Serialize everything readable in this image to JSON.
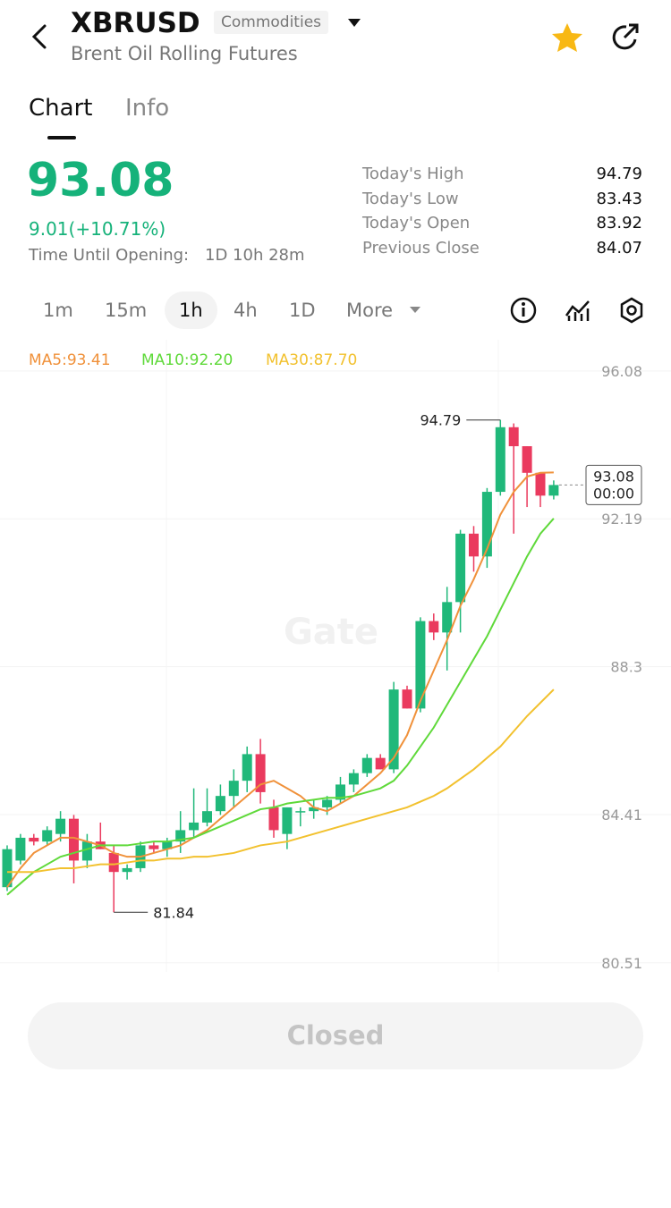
{
  "header": {
    "symbol": "XBRUSD",
    "tag": "Commodities",
    "subtitle": "Brent Oil Rolling Futures"
  },
  "tabs": [
    "Chart",
    "Info"
  ],
  "price": {
    "last": "93.08",
    "change": "9.01(+10.71%)",
    "opening_label": "Time Until Opening:",
    "opening_value": "1D 10h 28m"
  },
  "stats": [
    {
      "label": "Today's High",
      "value": "94.79"
    },
    {
      "label": "Today's Low",
      "value": "83.43"
    },
    {
      "label": "Today's Open",
      "value": "83.92"
    },
    {
      "label": "Previous Close",
      "value": "84.07"
    }
  ],
  "timeframes": [
    "1m",
    "15m",
    "1h",
    "4h",
    "1D",
    "More"
  ],
  "chart_data": {
    "type": "candlestick",
    "watermark": "Gate",
    "ylim": [
      80.27,
      96.9
    ],
    "yticks": [
      96.08,
      92.19,
      88.3,
      84.41,
      80.51
    ],
    "up_color": "#20b87a",
    "down_color": "#ea3a5e",
    "candles": [
      {
        "open": 82.5,
        "high": 83.6,
        "low": 82.4,
        "close": 83.5
      },
      {
        "open": 83.2,
        "high": 83.9,
        "low": 83.1,
        "close": 83.8
      },
      {
        "open": 83.8,
        "high": 83.9,
        "low": 83.6,
        "close": 83.7
      },
      {
        "open": 83.7,
        "high": 84.1,
        "low": 83.6,
        "close": 84.0
      },
      {
        "open": 83.9,
        "high": 84.5,
        "low": 83.7,
        "close": 84.3
      },
      {
        "open": 84.3,
        "high": 84.4,
        "low": 82.6,
        "close": 83.2
      },
      {
        "open": 83.2,
        "high": 83.9,
        "low": 83.0,
        "close": 83.7
      },
      {
        "open": 83.7,
        "high": 84.2,
        "low": 83.5,
        "close": 83.5
      },
      {
        "open": 83.4,
        "high": 83.6,
        "low": 81.84,
        "close": 82.9
      },
      {
        "open": 82.9,
        "high": 83.1,
        "low": 82.7,
        "close": 83.0
      },
      {
        "open": 83.0,
        "high": 83.7,
        "low": 82.9,
        "close": 83.6
      },
      {
        "open": 83.6,
        "high": 83.7,
        "low": 83.4,
        "close": 83.5
      },
      {
        "open": 83.5,
        "high": 83.8,
        "low": 83.3,
        "close": 83.7
      },
      {
        "open": 83.7,
        "high": 84.5,
        "low": 83.4,
        "close": 84.0
      },
      {
        "open": 84.0,
        "high": 85.1,
        "low": 83.8,
        "close": 84.2
      },
      {
        "open": 84.2,
        "high": 85.1,
        "low": 84.1,
        "close": 84.5
      },
      {
        "open": 84.5,
        "high": 85.2,
        "low": 84.4,
        "close": 84.9
      },
      {
        "open": 84.9,
        "high": 85.6,
        "low": 84.6,
        "close": 85.3
      },
      {
        "open": 85.3,
        "high": 86.2,
        "low": 85.0,
        "close": 86.0
      },
      {
        "open": 86.0,
        "high": 86.4,
        "low": 84.7,
        "close": 85.0
      },
      {
        "open": 84.6,
        "high": 84.8,
        "low": 83.8,
        "close": 84.0
      },
      {
        "open": 83.9,
        "high": 84.6,
        "low": 83.5,
        "close": 84.6
      },
      {
        "open": 84.5,
        "high": 84.6,
        "low": 84.1,
        "close": 84.5
      },
      {
        "open": 84.5,
        "high": 84.8,
        "low": 84.3,
        "close": 84.6
      },
      {
        "open": 84.6,
        "high": 84.9,
        "low": 84.4,
        "close": 84.8
      },
      {
        "open": 84.8,
        "high": 85.4,
        "low": 84.7,
        "close": 85.2
      },
      {
        "open": 85.2,
        "high": 85.6,
        "low": 85.0,
        "close": 85.5
      },
      {
        "open": 85.5,
        "high": 86.0,
        "low": 85.4,
        "close": 85.9
      },
      {
        "open": 85.9,
        "high": 86.0,
        "low": 85.6,
        "close": 85.6
      },
      {
        "open": 85.6,
        "high": 87.9,
        "low": 85.5,
        "close": 87.7
      },
      {
        "open": 87.7,
        "high": 87.8,
        "low": 87.2,
        "close": 87.2
      },
      {
        "open": 87.2,
        "high": 89.6,
        "low": 87.1,
        "close": 89.5
      },
      {
        "open": 89.5,
        "high": 89.7,
        "low": 89.0,
        "close": 89.2
      },
      {
        "open": 89.2,
        "high": 90.4,
        "low": 88.2,
        "close": 90.0
      },
      {
        "open": 90.0,
        "high": 91.9,
        "low": 89.2,
        "close": 91.8
      },
      {
        "open": 91.8,
        "high": 92.0,
        "low": 90.8,
        "close": 91.2
      },
      {
        "open": 91.2,
        "high": 93.0,
        "low": 90.9,
        "close": 92.9
      },
      {
        "open": 92.9,
        "high": 94.79,
        "low": 92.8,
        "close": 94.6
      },
      {
        "open": 94.6,
        "high": 94.7,
        "low": 91.8,
        "close": 94.1
      },
      {
        "open": 94.1,
        "high": 94.1,
        "low": 92.5,
        "close": 93.4
      },
      {
        "open": 93.4,
        "high": 93.4,
        "low": 92.5,
        "close": 92.8
      },
      {
        "open": 92.8,
        "high": 93.2,
        "low": 92.7,
        "close": 93.08
      }
    ],
    "series": [
      {
        "name": "MA5:93.41",
        "color": "#f0913a",
        "values": [
          82.5,
          83.0,
          83.4,
          83.6,
          83.8,
          83.8,
          83.7,
          83.6,
          83.4,
          83.3,
          83.3,
          83.4,
          83.5,
          83.6,
          83.8,
          84.0,
          84.3,
          84.6,
          84.9,
          85.2,
          85.3,
          85.1,
          84.9,
          84.6,
          84.5,
          84.7,
          84.9,
          85.2,
          85.5,
          85.9,
          86.5,
          87.4,
          88.2,
          89.0,
          89.9,
          90.6,
          91.4,
          92.3,
          92.9,
          93.3,
          93.4,
          93.41
        ]
      },
      {
        "name": "MA10:92.20",
        "color": "#5fd93a",
        "values": [
          82.3,
          82.6,
          82.9,
          83.1,
          83.3,
          83.4,
          83.5,
          83.6,
          83.6,
          83.6,
          83.65,
          83.7,
          83.7,
          83.75,
          83.8,
          83.95,
          84.1,
          84.25,
          84.4,
          84.55,
          84.6,
          84.7,
          84.75,
          84.8,
          84.85,
          84.85,
          84.9,
          85.0,
          85.1,
          85.3,
          85.7,
          86.2,
          86.7,
          87.3,
          87.9,
          88.5,
          89.1,
          89.8,
          90.5,
          91.2,
          91.8,
          92.2
        ]
      },
      {
        "name": "MA30:87.70",
        "color": "#f2c12e",
        "values": [
          82.9,
          82.9,
          82.9,
          82.95,
          83.0,
          83.0,
          83.05,
          83.1,
          83.1,
          83.15,
          83.2,
          83.2,
          83.25,
          83.25,
          83.3,
          83.3,
          83.35,
          83.4,
          83.5,
          83.6,
          83.65,
          83.7,
          83.8,
          83.9,
          84.0,
          84.1,
          84.2,
          84.3,
          84.4,
          84.5,
          84.6,
          84.75,
          84.9,
          85.1,
          85.35,
          85.6,
          85.9,
          86.2,
          86.6,
          87.0,
          87.35,
          87.7
        ]
      }
    ],
    "max": 94.79,
    "min": 81.84,
    "last": 93.08,
    "countdown": "00:00"
  },
  "button": "Closed"
}
